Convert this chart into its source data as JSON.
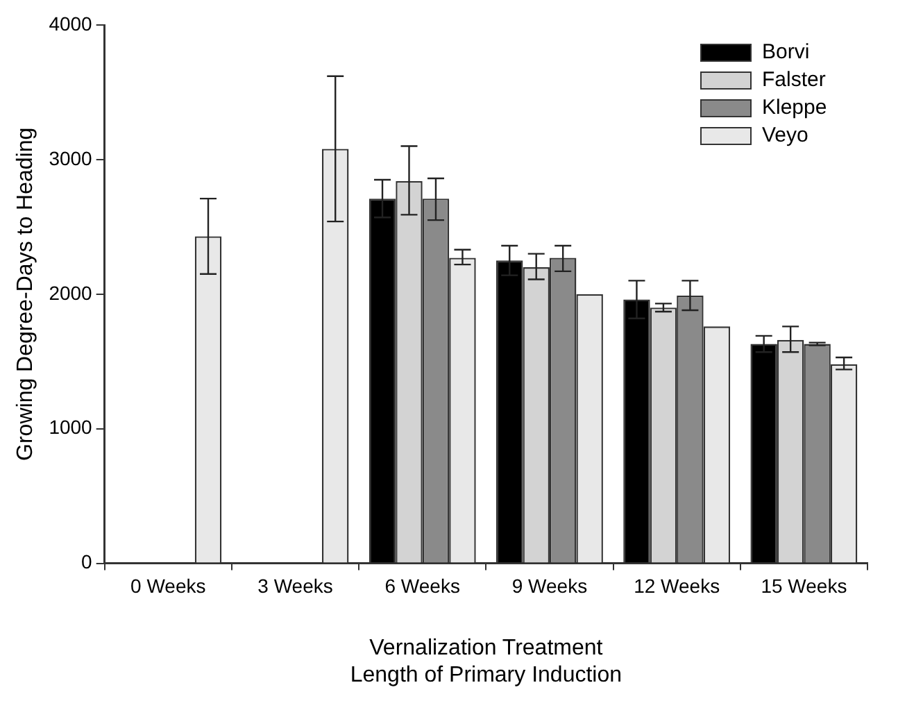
{
  "chart_data": {
    "type": "bar",
    "xlabel": "Vernalization Treatment\nLength of Primary Induction",
    "ylabel": "Growing Degree-Days to Heading",
    "categories": [
      "0 Weeks",
      "3 Weeks",
      "6 Weeks",
      "9 Weeks",
      "12 Weeks",
      "15 Weeks"
    ],
    "series": [
      {
        "name": "Borvi",
        "color": "#000000",
        "values": [
          null,
          null,
          2710,
          2250,
          1960,
          1630
        ],
        "errors": [
          null,
          null,
          140,
          110,
          140,
          60
        ]
      },
      {
        "name": "Falster",
        "color": "#d3d3d3",
        "values": [
          null,
          null,
          2840,
          2200,
          1900,
          1660
        ],
        "errors": [
          null,
          null,
          [
            2590,
            3100
          ],
          [
            2110,
            2300
          ],
          30,
          [
            1570,
            1760
          ]
        ]
      },
      {
        "name": "Kleppe",
        "color": "#8a8a8a",
        "values": [
          null,
          null,
          2710,
          2270,
          1990,
          1630
        ],
        "errors": [
          null,
          null,
          [
            2550,
            2860
          ],
          [
            2170,
            2360
          ],
          [
            1880,
            2100
          ],
          10
        ]
      },
      {
        "name": "Veyo",
        "color": "#e8e8e8",
        "values": [
          2430,
          3080,
          2270,
          2000,
          1760,
          1480
        ],
        "errors": [
          [
            2150,
            2710
          ],
          [
            2540,
            3620
          ],
          [
            2220,
            2330
          ],
          null,
          null,
          [
            1440,
            1530
          ]
        ]
      }
    ],
    "ylim": [
      0,
      4000
    ],
    "yticks": [
      0,
      1000,
      2000,
      3000,
      4000
    ],
    "grid": false,
    "legend": "top right"
  }
}
